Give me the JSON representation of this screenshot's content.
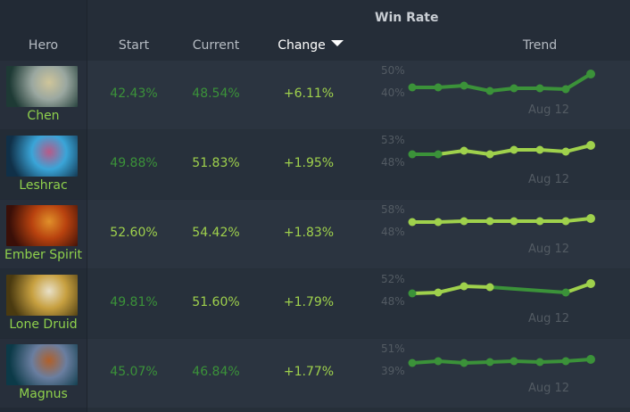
{
  "header": {
    "group_title": "Win Rate",
    "columns": {
      "hero": "Hero",
      "start": "Start",
      "current": "Current",
      "change": "Change",
      "trend": "Trend"
    },
    "sorted_by": "Change",
    "sort_direction": "descending"
  },
  "colors": {
    "dark_green": "#3b9239",
    "lime_green": "#9fd14c",
    "axis_gray": "#535b63"
  },
  "rows": [
    {
      "hero": "Chen",
      "start": "42.43%",
      "current": "48.54%",
      "change": "+6.11%",
      "start_color": "dark",
      "current_color": "dark",
      "change_color": "lime",
      "trend": {
        "y_high": "50%",
        "y_low": "40%",
        "date": "Aug 12",
        "points": [
          30,
          30,
          28,
          34,
          31,
          31,
          32,
          15
        ],
        "point_colors": [
          "dark",
          "dark",
          "dark",
          "dark",
          "dark",
          "dark",
          "dark",
          "dark"
        ]
      },
      "portrait": [
        "#1e3a35",
        "#9aa7a0",
        "#cfc59a"
      ]
    },
    {
      "hero": "Leshrac",
      "start": "49.88%",
      "current": "51.83%",
      "change": "+1.95%",
      "start_color": "dark",
      "current_color": "lime",
      "change_color": "lime",
      "trend": {
        "y_high": "53%",
        "y_low": "48%",
        "date": "Aug 12",
        "points": [
          27,
          27,
          23,
          27,
          22,
          22,
          24,
          17
        ],
        "point_colors": [
          "dark",
          "dark",
          "lime",
          "lime",
          "lime",
          "lime",
          "lime",
          "lime"
        ]
      },
      "portrait": [
        "#103048",
        "#3aa5d8",
        "#b85a88"
      ]
    },
    {
      "hero": "Ember Spirit",
      "start": "52.60%",
      "current": "54.42%",
      "change": "+1.83%",
      "start_color": "lime",
      "current_color": "lime",
      "change_color": "lime",
      "trend": {
        "y_high": "58%",
        "y_low": "48%",
        "date": "Aug 12",
        "points": [
          25,
          25,
          24,
          24,
          24,
          24,
          24,
          21
        ],
        "point_colors": [
          "lime",
          "lime",
          "lime",
          "lime",
          "lime",
          "lime",
          "lime",
          "lime"
        ]
      },
      "portrait": [
        "#3a0f08",
        "#b8420f",
        "#e0902a"
      ]
    },
    {
      "hero": "Lone Druid",
      "start": "49.81%",
      "current": "51.60%",
      "change": "+1.79%",
      "start_color": "dark",
      "current_color": "lime",
      "change_color": "lime",
      "trend": {
        "y_high": "52%",
        "y_low": "48%",
        "date": "Aug 12",
        "points": [
          27,
          26,
          19,
          20,
          null,
          null,
          26,
          16
        ],
        "point_colors": [
          "dark",
          "lime",
          "lime",
          "lime",
          "",
          "",
          "dark",
          "lime"
        ]
      },
      "portrait": [
        "#4a3a10",
        "#c7a040",
        "#e8e0c8"
      ]
    },
    {
      "hero": "Magnus",
      "start": "45.07%",
      "current": "46.84%",
      "change": "+1.77%",
      "start_color": "dark",
      "current_color": "dark",
      "change_color": "lime",
      "trend": {
        "y_high": "51%",
        "y_low": "39%",
        "date": "Aug 12",
        "points": [
          27,
          25,
          27,
          26,
          25,
          26,
          25,
          23
        ],
        "point_colors": [
          "dark",
          "dark",
          "dark",
          "dark",
          "dark",
          "dark",
          "dark",
          "dark"
        ]
      },
      "portrait": [
        "#0c3a48",
        "#6a7ea0",
        "#b0602a"
      ]
    }
  ]
}
